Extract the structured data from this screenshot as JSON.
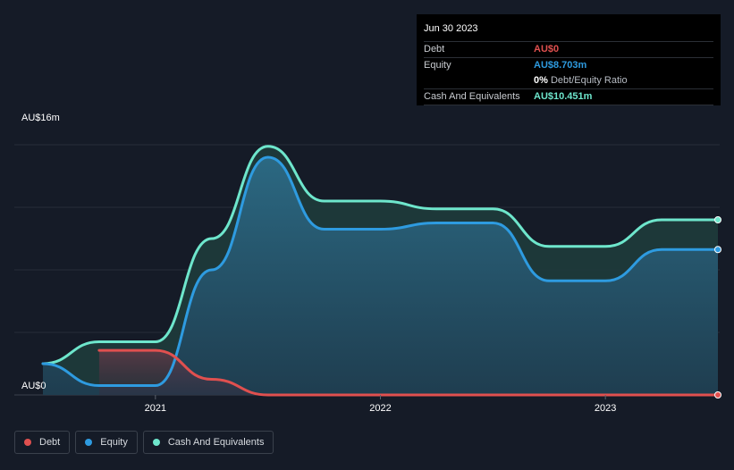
{
  "chart_data": {
    "type": "area",
    "y_top_label": "AU$16m",
    "y_bottom_label": "AU$0",
    "ylim": [
      0,
      16
    ],
    "x_ticks": [
      "2021",
      "2022",
      "2023"
    ],
    "x_tick_values": [
      2021.0,
      2022.0,
      2023.0
    ],
    "xlim": [
      2020.5,
      2023.5
    ],
    "series": [
      {
        "name": "Debt",
        "color": "#e0504f",
        "points": [
          [
            2020.75,
            2.85
          ],
          [
            2021.0,
            2.85
          ],
          [
            2021.25,
            1.0
          ],
          [
            2021.5,
            0
          ],
          [
            2022.0,
            0
          ],
          [
            2022.5,
            0
          ],
          [
            2023.0,
            0
          ],
          [
            2023.5,
            0
          ]
        ]
      },
      {
        "name": "Equity",
        "color": "#2e9be0",
        "points": [
          [
            2020.5,
            2.0
          ],
          [
            2020.75,
            0.6
          ],
          [
            2021.0,
            0.6
          ],
          [
            2021.25,
            8.0
          ],
          [
            2021.5,
            15.2
          ],
          [
            2021.75,
            10.6
          ],
          [
            2022.0,
            10.6
          ],
          [
            2022.25,
            11.0
          ],
          [
            2022.5,
            11.0
          ],
          [
            2022.75,
            7.3
          ],
          [
            2023.0,
            7.3
          ],
          [
            2023.25,
            9.3
          ],
          [
            2023.5,
            9.3
          ]
        ]
      },
      {
        "name": "Cash And Equivalents",
        "color": "#6ee6cc",
        "points": [
          [
            2020.5,
            2.0
          ],
          [
            2020.75,
            3.4
          ],
          [
            2021.0,
            3.4
          ],
          [
            2021.25,
            10.0
          ],
          [
            2021.5,
            15.9
          ],
          [
            2021.75,
            12.4
          ],
          [
            2022.0,
            12.4
          ],
          [
            2022.25,
            11.9
          ],
          [
            2022.5,
            11.9
          ],
          [
            2022.75,
            9.5
          ],
          [
            2023.0,
            9.5
          ],
          [
            2023.25,
            11.2
          ],
          [
            2023.5,
            11.2
          ]
        ]
      }
    ],
    "grid": true
  },
  "tooltip": {
    "date": "Jun 30 2023",
    "rows": [
      {
        "label": "Debt",
        "value": "AU$0",
        "color": "#e0504f"
      },
      {
        "label": "Equity",
        "value": "AU$8.703m",
        "color": "#2e9be0"
      },
      {
        "label": "",
        "value": "0%",
        "suffix": "Debt/Equity Ratio",
        "color": "#ffffff"
      },
      {
        "label": "Cash And Equivalents",
        "value": "AU$10.451m",
        "color": "#6ee6cc"
      }
    ]
  },
  "legend": [
    {
      "label": "Debt",
      "color": "#e0504f"
    },
    {
      "label": "Equity",
      "color": "#2e9be0"
    },
    {
      "label": "Cash And Equivalents",
      "color": "#6ee6cc"
    }
  ]
}
